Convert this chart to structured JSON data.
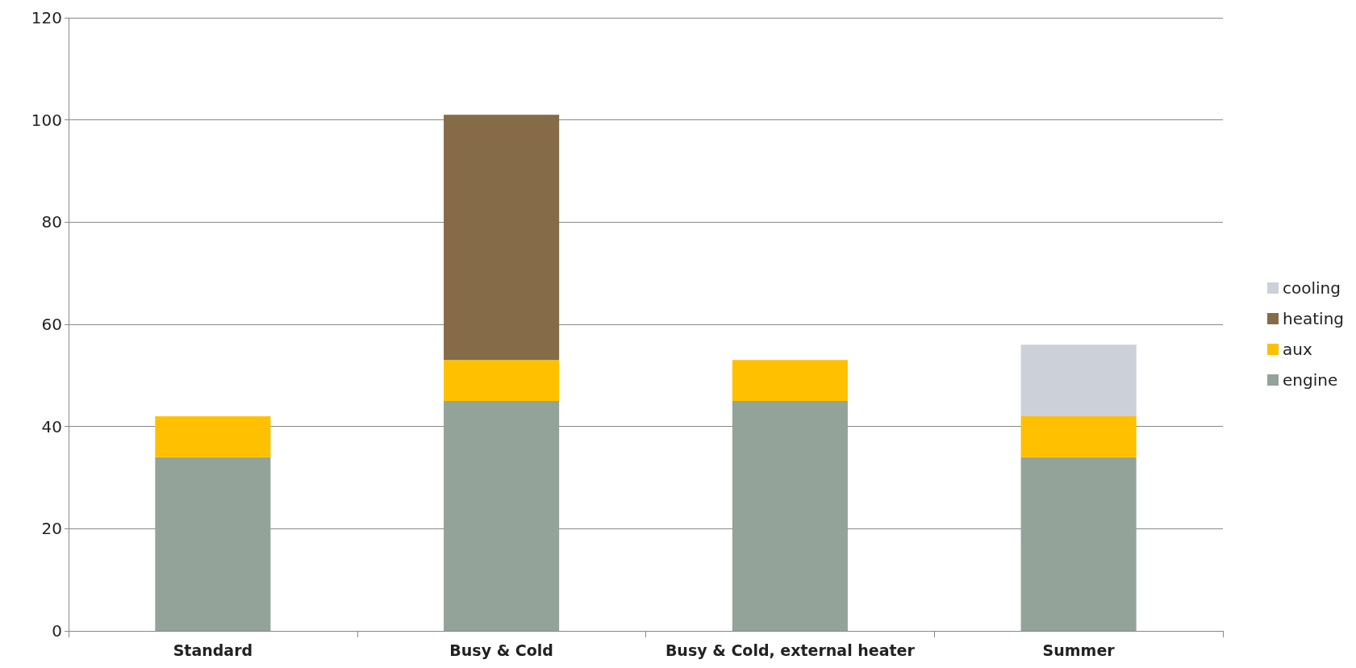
{
  "chart_data": {
    "type": "bar",
    "stacked": true,
    "categories": [
      "Standard",
      "Busy & Cold",
      "Busy & Cold, external heater",
      "Summer"
    ],
    "series": [
      {
        "name": "engine",
        "color": "#93a399",
        "values": [
          34,
          45,
          45,
          34
        ]
      },
      {
        "name": "aux",
        "color": "#ffc000",
        "values": [
          8,
          8,
          8,
          8
        ]
      },
      {
        "name": "heating",
        "color": "#866b48",
        "values": [
          0,
          48,
          0,
          0
        ]
      },
      {
        "name": "cooling",
        "color": "#ccd0d9",
        "values": [
          0,
          0,
          0,
          14
        ]
      }
    ],
    "ylim": [
      0,
      120
    ],
    "yticks": [
      0,
      20,
      40,
      60,
      80,
      100,
      120
    ],
    "grid": "y",
    "legend": "right"
  }
}
